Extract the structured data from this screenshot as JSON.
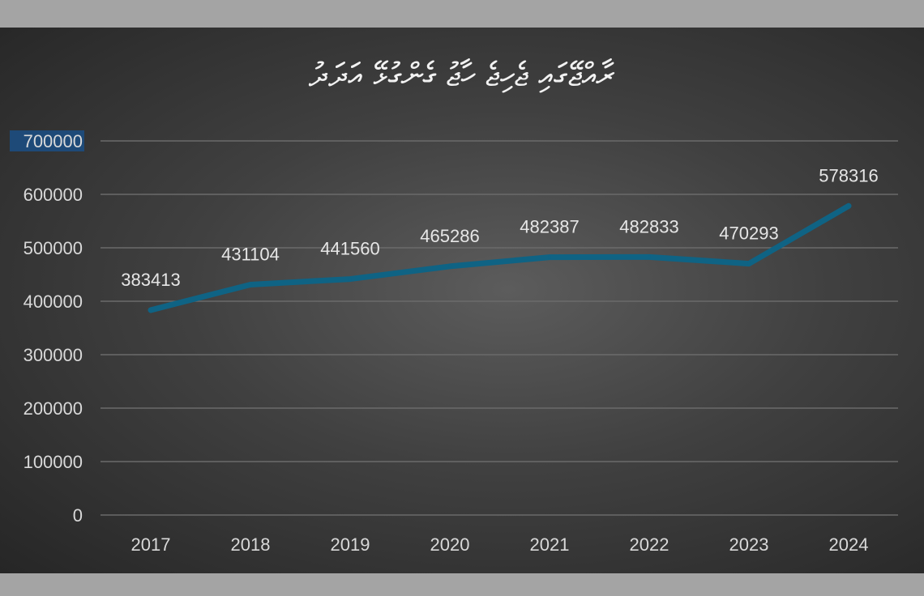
{
  "chart_data": {
    "type": "line",
    "title": "ރާއްޖޭގައި ޖެހިޖެ ހާޖު ގެންގުޅޭ އަދަދު",
    "categories": [
      "2017",
      "2018",
      "2019",
      "2020",
      "2021",
      "2022",
      "2023",
      "2024"
    ],
    "series": [
      {
        "values": [
          383413,
          431104,
          441560,
          465286,
          482387,
          482833,
          470293,
          578316
        ]
      }
    ],
    "data_labels": [
      "383413",
      "431104",
      "441560",
      "465286",
      "482387",
      "482833",
      "470293",
      "578316"
    ],
    "y_ticks": [
      "0",
      "100000",
      "200000",
      "300000",
      "400000",
      "500000",
      "600000",
      "700000"
    ],
    "ylim": [
      0,
      700000
    ],
    "grid": true,
    "legend": "none",
    "colors": {
      "line": "#0f6384",
      "background": "#3d3d3d",
      "frame": "#a4a4a4",
      "highlight_tick": "#1e4a78"
    }
  }
}
